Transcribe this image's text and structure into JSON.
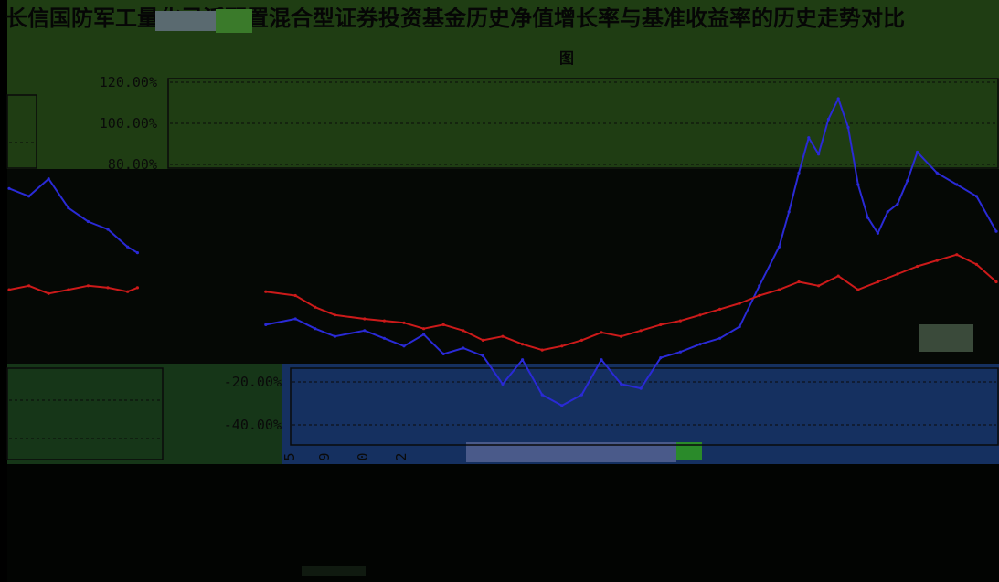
{
  "page": {
    "title": "长信国防军工量化灵活配置混合型证券投资基金历史净值增长率与基准收益率的历史走势对比",
    "subtitle": "图"
  },
  "colors": {
    "fund": "#2a2ad6",
    "benchmark": "#cc1a1a",
    "plot_bg": "#1f3d13",
    "grid": "#0a0a0a"
  },
  "chart_data": {
    "type": "line",
    "title": "",
    "xlabel": "",
    "ylabel": "",
    "ylim": [
      -0.5,
      1.2
    ],
    "yticks": [
      1.2,
      1.0,
      0.8,
      -0.2,
      -0.4
    ],
    "ytick_labels": [
      "120.00%",
      "100.00%",
      "80.00%",
      "-20.00%",
      "-40.00%"
    ],
    "x_tick_labels": [
      "5",
      "9",
      "0",
      "2"
    ],
    "grid": true,
    "series": [
      {
        "color": "#2a2ad6",
        "points": [
          [
            0.0,
            0.7
          ],
          [
            0.02,
            0.66
          ],
          [
            0.04,
            0.75
          ],
          [
            0.06,
            0.6
          ],
          [
            0.08,
            0.53
          ],
          [
            0.1,
            0.49
          ],
          [
            0.12,
            0.4
          ],
          [
            0.13,
            0.37
          ],
          [
            0.26,
            0.0
          ],
          [
            0.29,
            0.03
          ],
          [
            0.31,
            -0.02
          ],
          [
            0.33,
            -0.06
          ],
          [
            0.36,
            -0.03
          ],
          [
            0.38,
            -0.07
          ],
          [
            0.4,
            -0.11
          ],
          [
            0.42,
            -0.05
          ],
          [
            0.44,
            -0.15
          ],
          [
            0.46,
            -0.12
          ],
          [
            0.48,
            -0.16
          ],
          [
            0.5,
            -0.21
          ],
          [
            0.52,
            -0.18
          ],
          [
            0.54,
            -0.26
          ],
          [
            0.56,
            -0.31
          ],
          [
            0.58,
            -0.26
          ],
          [
            0.6,
            -0.18
          ],
          [
            0.62,
            -0.21
          ],
          [
            0.64,
            -0.23
          ],
          [
            0.66,
            -0.17
          ],
          [
            0.68,
            -0.14
          ],
          [
            0.7,
            -0.1
          ],
          [
            0.72,
            -0.07
          ],
          [
            0.74,
            -0.01
          ],
          [
            0.76,
            0.2
          ],
          [
            0.78,
            0.4
          ],
          [
            0.79,
            0.58
          ],
          [
            0.8,
            0.78
          ],
          [
            0.81,
            0.93
          ],
          [
            0.82,
            0.85
          ],
          [
            0.83,
            1.02
          ],
          [
            0.84,
            1.12
          ],
          [
            0.85,
            0.98
          ],
          [
            0.86,
            0.72
          ],
          [
            0.87,
            0.55
          ],
          [
            0.88,
            0.47
          ],
          [
            0.89,
            0.58
          ],
          [
            0.9,
            0.62
          ],
          [
            0.91,
            0.74
          ],
          [
            0.92,
            0.86
          ],
          [
            0.94,
            0.78
          ],
          [
            0.96,
            0.72
          ],
          [
            0.98,
            0.66
          ],
          [
            1.0,
            0.48
          ]
        ]
      },
      {
        "color": "#cc1a1a",
        "points": [
          [
            0.0,
            0.18
          ],
          [
            0.02,
            0.2
          ],
          [
            0.04,
            0.16
          ],
          [
            0.06,
            0.18
          ],
          [
            0.08,
            0.2
          ],
          [
            0.1,
            0.19
          ],
          [
            0.12,
            0.17
          ],
          [
            0.13,
            0.19
          ],
          [
            0.26,
            0.17
          ],
          [
            0.29,
            0.15
          ],
          [
            0.31,
            0.09
          ],
          [
            0.33,
            0.05
          ],
          [
            0.36,
            0.03
          ],
          [
            0.38,
            0.02
          ],
          [
            0.4,
            0.01
          ],
          [
            0.42,
            -0.02
          ],
          [
            0.44,
            0.0
          ],
          [
            0.46,
            -0.03
          ],
          [
            0.48,
            -0.08
          ],
          [
            0.5,
            -0.06
          ],
          [
            0.52,
            -0.1
          ],
          [
            0.54,
            -0.13
          ],
          [
            0.56,
            -0.11
          ],
          [
            0.58,
            -0.08
          ],
          [
            0.6,
            -0.04
          ],
          [
            0.62,
            -0.06
          ],
          [
            0.64,
            -0.03
          ],
          [
            0.66,
            0.0
          ],
          [
            0.68,
            0.02
          ],
          [
            0.7,
            0.05
          ],
          [
            0.72,
            0.08
          ],
          [
            0.74,
            0.11
          ],
          [
            0.76,
            0.15
          ],
          [
            0.78,
            0.18
          ],
          [
            0.8,
            0.22
          ],
          [
            0.82,
            0.2
          ],
          [
            0.84,
            0.25
          ],
          [
            0.86,
            0.18
          ],
          [
            0.88,
            0.22
          ],
          [
            0.9,
            0.26
          ],
          [
            0.92,
            0.3
          ],
          [
            0.94,
            0.33
          ],
          [
            0.96,
            0.36
          ],
          [
            0.98,
            0.31
          ],
          [
            1.0,
            0.22
          ]
        ]
      }
    ]
  }
}
